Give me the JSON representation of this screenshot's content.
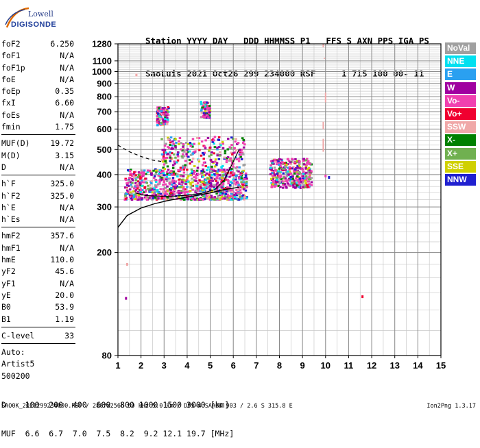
{
  "logo": {
    "line1": "Lowell",
    "line2": "DIGISONDE"
  },
  "header": {
    "line1": "Station YYYY DAY   DDD HHMMSS P1   FFS S AXN PPS IGA PS",
    "line2": "SaoLuis 2021 Oct26 299 234000 RSF     1 715 100 00- 11"
  },
  "params": {
    "group1": [
      {
        "name": "foF2",
        "value": "6.250"
      },
      {
        "name": "foF1",
        "value": "N/A"
      },
      {
        "name": "foF1p",
        "value": "N/A"
      },
      {
        "name": "foE",
        "value": "N/A"
      },
      {
        "name": "foEp",
        "value": "0.35"
      },
      {
        "name": "fxI",
        "value": "6.60"
      },
      {
        "name": "foEs",
        "value": "N/A"
      },
      {
        "name": "fmin",
        "value": "1.75"
      }
    ],
    "group2": [
      {
        "name": "MUF(D)",
        "value": "19.72"
      },
      {
        "name": "M(D)",
        "value": "3.15"
      },
      {
        "name": "D",
        "value": "N/A"
      }
    ],
    "group3": [
      {
        "name": "h`F",
        "value": "325.0"
      },
      {
        "name": "h`F2",
        "value": "325.0"
      },
      {
        "name": "h`E",
        "value": "N/A"
      },
      {
        "name": "h`Es",
        "value": "N/A"
      }
    ],
    "group4": [
      {
        "name": "hmF2",
        "value": "357.6"
      },
      {
        "name": "hmF1",
        "value": "N/A"
      },
      {
        "name": "hmE",
        "value": "110.0"
      },
      {
        "name": "yF2",
        "value": "45.6"
      },
      {
        "name": "yF1",
        "value": "N/A"
      },
      {
        "name": "yE",
        "value": "20.0"
      },
      {
        "name": "B0",
        "value": "53.9"
      },
      {
        "name": "B1",
        "value": "1.19"
      }
    ],
    "clevel": {
      "name": "C-level",
      "value": "33"
    },
    "auto": [
      "Auto:",
      "Artist5",
      "500200"
    ]
  },
  "legend": [
    {
      "label": "NoVal",
      "color": "#a0a0a0"
    },
    {
      "label": "NNE",
      "color": "#00e0f0"
    },
    {
      "label": "E",
      "color": "#2aa0f0"
    },
    {
      "label": "W",
      "color": "#a000a0"
    },
    {
      "label": "Vo-",
      "color": "#f040b0"
    },
    {
      "label": "Vo+",
      "color": "#f00030"
    },
    {
      "label": "SSW",
      "color": "#f0a8a8"
    },
    {
      "label": "X-",
      "color": "#008000"
    },
    {
      "label": "X+",
      "color": "#70b050"
    },
    {
      "label": "SSE",
      "color": "#d0d000"
    },
    {
      "label": "NNW",
      "color": "#2020d0"
    }
  ],
  "footer": {
    "line1": "D    100  200  400  600  800 1000 1500 3000 [km]",
    "line2": "MUF  6.6  6.7  7.0  7.5  8.2  9.2 12.1 19.7 [MHz]",
    "line3": "SAO0K_2021299234000.RSF / 280fx256h 50 kHz 5.0 km / DPS-4 SAA0K 903 / 2.6 S 315.8 E",
    "version": "Ion2Png 1.3.17"
  },
  "chart_data": {
    "type": "scatter",
    "title": "",
    "xlabel": "",
    "ylabel": "",
    "xlim": [
      1,
      15
    ],
    "ylim": [
      80,
      1280
    ],
    "y_scale": "log",
    "grid": true,
    "x_ticks": [
      1,
      2,
      3,
      4,
      5,
      6,
      7,
      8,
      9,
      10,
      11,
      12,
      13,
      14,
      15
    ],
    "y_ticks": [
      80,
      200,
      300,
      400,
      500,
      600,
      700,
      800,
      900,
      1000,
      1100,
      1280
    ],
    "echo_clusters": [
      {
        "name": "O-trace",
        "xrange": [
          1.3,
          6.6
        ],
        "yrange": [
          320,
          420
        ]
      },
      {
        "name": "X-trace",
        "xrange": [
          7.6,
          9.4
        ],
        "yrange": [
          355,
          460
        ]
      },
      {
        "name": "multi-hop",
        "xrange": [
          2.7,
          3.2
        ],
        "yrange": [
          620,
          730
        ]
      },
      {
        "name": "multi-hop",
        "xrange": [
          4.6,
          5.0
        ],
        "yrange": [
          660,
          770
        ]
      },
      {
        "name": "spread",
        "xrange": [
          2.9,
          6.5
        ],
        "yrange": [
          420,
          560
        ]
      }
    ],
    "profile_curve": {
      "x": [
        1.0,
        1.4,
        2.0,
        2.6,
        3.2,
        3.8,
        4.4,
        5.0,
        5.6,
        6.25
      ],
      "y": [
        250,
        278,
        297,
        309,
        318,
        325,
        332,
        340,
        350,
        357.6
      ]
    },
    "virtual_height_trace": {
      "x": [
        1.75,
        2.2,
        2.8,
        3.4,
        4.0,
        4.6,
        5.2,
        5.6,
        5.9,
        6.25
      ],
      "y": [
        340,
        332,
        330,
        330,
        333,
        338,
        350,
        380,
        430,
        500
      ]
    },
    "dashed_curve": {
      "x": [
        1.0,
        1.5,
        2.0,
        2.5,
        3.0
      ],
      "y": [
        520,
        490,
        470,
        455,
        448
      ]
    }
  }
}
